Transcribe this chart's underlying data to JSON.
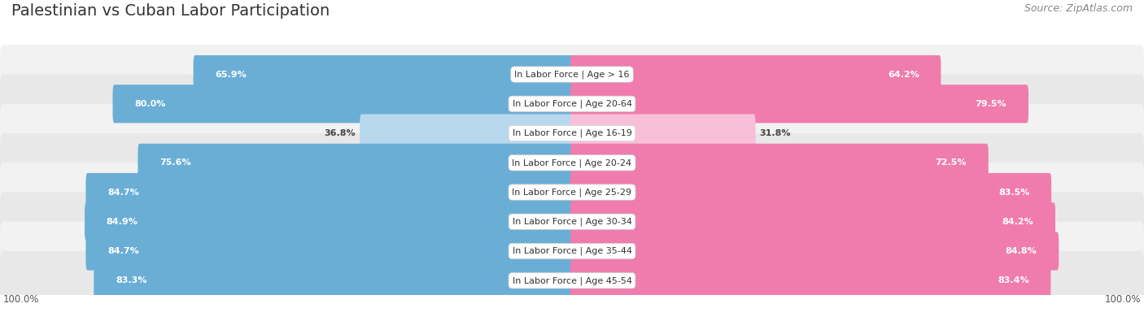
{
  "title": "Palestinian vs Cuban Labor Participation",
  "source": "Source: ZipAtlas.com",
  "categories": [
    "In Labor Force | Age > 16",
    "In Labor Force | Age 20-64",
    "In Labor Force | Age 16-19",
    "In Labor Force | Age 20-24",
    "In Labor Force | Age 25-29",
    "In Labor Force | Age 30-34",
    "In Labor Force | Age 35-44",
    "In Labor Force | Age 45-54"
  ],
  "palestinian_values": [
    65.9,
    80.0,
    36.8,
    75.6,
    84.7,
    84.9,
    84.7,
    83.3
  ],
  "cuban_values": [
    64.2,
    79.5,
    31.8,
    72.5,
    83.5,
    84.2,
    84.8,
    83.4
  ],
  "palestinian_color": "#6aaed6",
  "cuban_color": "#f07cad",
  "palestinian_color_light": "#b8d8ee",
  "cuban_color_light": "#f8c0d8",
  "row_bg_color_odd": "#f2f2f2",
  "row_bg_color_even": "#e8e8e8",
  "title_fontsize": 14,
  "source_fontsize": 9,
  "bar_label_fontsize": 8,
  "cat_label_fontsize": 8,
  "max_value": 100.0,
  "background_color": "#ffffff",
  "legend_label_pal": "Palestinian",
  "legend_label_cub": "Cuban",
  "bottom_label": "100.0%"
}
